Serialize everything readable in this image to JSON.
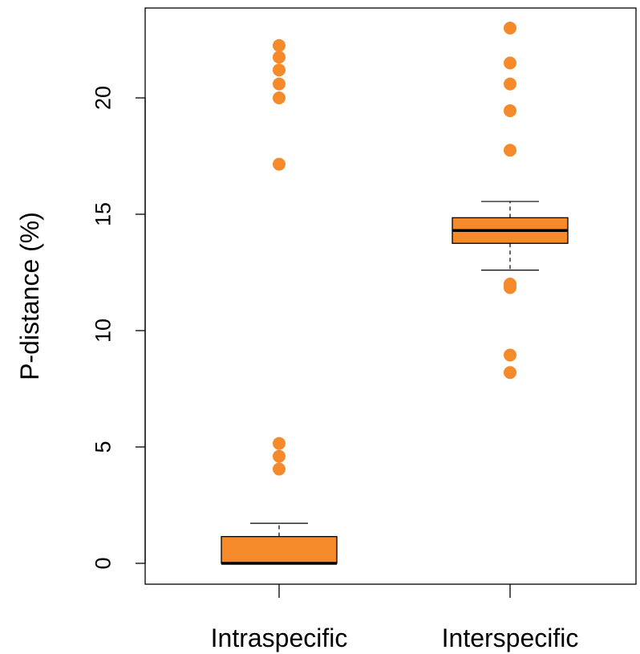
{
  "chart_data": {
    "type": "boxplot",
    "ylabel": "P-distance (%)",
    "ylim": [
      -1,
      24
    ],
    "yticks": [
      0,
      5,
      10,
      15,
      20
    ],
    "box_color": "#f58a2a",
    "outlier_color": "#f58a2a",
    "groups": [
      {
        "name": "Intraspecific",
        "whisker_low": 0,
        "q1": 0,
        "median": 0,
        "q3": 1.15,
        "whisker_high": 1.72,
        "outliers": [
          4.05,
          4.6,
          5.15,
          17.15,
          20.0,
          20.6,
          21.2,
          21.75,
          22.25
        ]
      },
      {
        "name": "Interspecific",
        "whisker_low": 12.6,
        "q1": 13.75,
        "median": 14.3,
        "q3": 14.85,
        "whisker_high": 15.55,
        "outliers": [
          8.2,
          8.95,
          11.85,
          12.0,
          17.75,
          19.45,
          20.6,
          21.5,
          23.0
        ]
      }
    ]
  }
}
